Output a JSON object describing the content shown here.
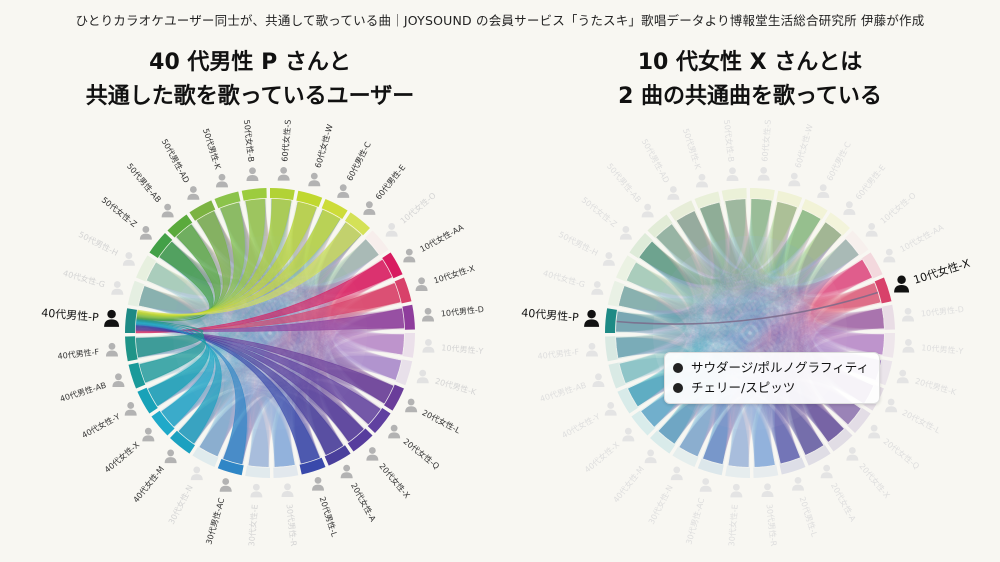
{
  "source_note": "ひとりカラオケユーザー同士が、共通して歌っている曲｜JOYSOUND の会員サービス「うたスキ」歌唱データより博報堂生活総合研究所 伊藤が作成",
  "left_panel": {
    "title_line1": "40 代男性 P さんと",
    "title_line2": "共通した歌を歌っているユーザー",
    "focus_user": "40代男性-P"
  },
  "right_panel": {
    "title_line1": "10 代女性 X さんとは",
    "title_line2": "2 曲の共通曲を歌っている",
    "focus_user": "40代男性-P",
    "partner_user": "10代女性-X",
    "shared_songs": [
      "サウダージ/ポルノグラフィティ",
      "チェリー/スピッツ"
    ]
  },
  "colors": {
    "background": "#f8f7f2",
    "focus_arc": "#1e8a85",
    "partner_arc": "#d8416a"
  },
  "chart_data": {
    "type": "chord",
    "nodes": [
      {
        "label": "10代女性-AA",
        "color": "#d81b60",
        "linked": true
      },
      {
        "label": "10代女性-X",
        "color": "#d8416a",
        "linked": true
      },
      {
        "label": "10代男性-D",
        "color": "#8e3d9c",
        "linked": true
      },
      {
        "label": "10代男性-Y",
        "color": "#b07cc6",
        "linked": false
      },
      {
        "label": "20代男性-K",
        "color": "#9f79c9",
        "linked": false
      },
      {
        "label": "20代女性-L",
        "color": "#6a3d9a",
        "linked": true
      },
      {
        "label": "20代女性-Q",
        "color": "#6040a0",
        "linked": true
      },
      {
        "label": "20代女性-X",
        "color": "#573d9d",
        "linked": true
      },
      {
        "label": "20代女性-A",
        "color": "#4a3f9c",
        "linked": true
      },
      {
        "label": "20代男性-L",
        "color": "#3949ab",
        "linked": true
      },
      {
        "label": "30代男性-R",
        "color": "#7fa7d9",
        "linked": false
      },
      {
        "label": "30代女性-E",
        "color": "#7ab0d9",
        "linked": false
      },
      {
        "label": "30代男性-AC",
        "color": "#2f86c6",
        "linked": true
      },
      {
        "label": "30代女性-N",
        "color": "#74b7d6",
        "linked": false
      },
      {
        "label": "40代女性-M",
        "color": "#1ba1c0",
        "linked": true
      },
      {
        "label": "40代女性-X",
        "color": "#1fa9c9",
        "linked": true
      },
      {
        "label": "40代女性-Y",
        "color": "#18a2b8",
        "linked": true
      },
      {
        "label": "40代男性-AB",
        "color": "#1b9a9a",
        "linked": true
      },
      {
        "label": "40代男性-F",
        "color": "#1f9488",
        "linked": true
      },
      {
        "label": "40代男性-P",
        "color": "#1e8a85",
        "linked": true,
        "focus": true
      },
      {
        "label": "40代女性-G",
        "color": "#8fcf9c",
        "linked": false
      },
      {
        "label": "50代男性-H",
        "color": "#9cd38d",
        "linked": false
      },
      {
        "label": "50代女性-Z",
        "color": "#43a047",
        "linked": true
      },
      {
        "label": "50代男性-AB",
        "color": "#5aaa3c",
        "linked": true
      },
      {
        "label": "50代男性-AD",
        "color": "#7cb342",
        "linked": true
      },
      {
        "label": "50代男性-K",
        "color": "#8bc34a",
        "linked": true
      },
      {
        "label": "50代女性-B",
        "color": "#9ccc3e",
        "linked": true
      },
      {
        "label": "60代女性-S",
        "color": "#b2d235",
        "linked": true
      },
      {
        "label": "60代女性-W",
        "color": "#c0d82f",
        "linked": true
      },
      {
        "label": "60代男性-C",
        "color": "#cddc39",
        "linked": true
      },
      {
        "label": "60代男性-E",
        "color": "#d4e157",
        "linked": true
      },
      {
        "label": "10代女性-O",
        "color": "#f2c6d5",
        "linked": false
      }
    ],
    "right_links": [
      {
        "from": "40代男性-P",
        "to": "10代女性-X",
        "shared_count": 2
      }
    ]
  }
}
